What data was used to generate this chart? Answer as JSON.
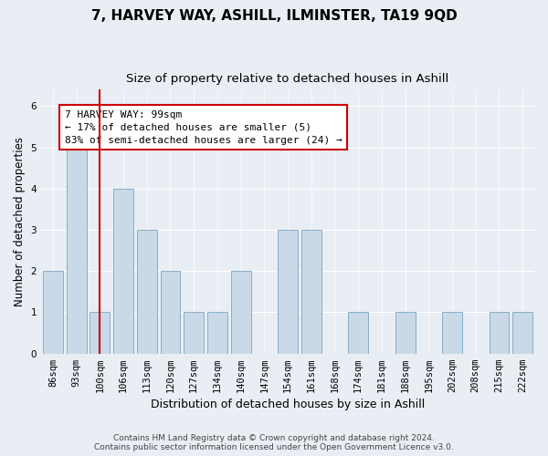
{
  "title": "7, HARVEY WAY, ASHILL, ILMINSTER, TA19 9QD",
  "subtitle": "Size of property relative to detached houses in Ashill",
  "xlabel": "Distribution of detached houses by size in Ashill",
  "ylabel": "Number of detached properties",
  "categories": [
    "86sqm",
    "93sqm",
    "100sqm",
    "106sqm",
    "113sqm",
    "120sqm",
    "127sqm",
    "134sqm",
    "140sqm",
    "147sqm",
    "154sqm",
    "161sqm",
    "168sqm",
    "174sqm",
    "181sqm",
    "188sqm",
    "195sqm",
    "202sqm",
    "208sqm",
    "215sqm",
    "222sqm"
  ],
  "values": [
    2,
    5,
    1,
    4,
    3,
    2,
    1,
    1,
    2,
    0,
    3,
    3,
    0,
    1,
    0,
    1,
    0,
    1,
    0,
    1,
    1
  ],
  "bar_color": "#c9d9e8",
  "bar_edge_color": "#8aaec8",
  "reference_line_x": "100sqm",
  "reference_line_color": "#cc0000",
  "annotation_text": "7 HARVEY WAY: 99sqm\n← 17% of detached houses are smaller (5)\n83% of semi-detached houses are larger (24) →",
  "annotation_box_facecolor": "#ffffff",
  "annotation_box_edgecolor": "#cc0000",
  "ylim": [
    0,
    6.4
  ],
  "yticks": [
    0,
    1,
    2,
    3,
    4,
    5,
    6
  ],
  "footer_text": "Contains HM Land Registry data © Crown copyright and database right 2024.\nContains public sector information licensed under the Open Government Licence v3.0.",
  "bg_color": "#e8eef4",
  "plot_bg_color": "#e8eef4",
  "title_fontsize": 11,
  "subtitle_fontsize": 9.5,
  "ylabel_fontsize": 8.5,
  "xlabel_fontsize": 9,
  "tick_fontsize": 7.5,
  "annotation_fontsize": 8,
  "footer_fontsize": 6.5
}
